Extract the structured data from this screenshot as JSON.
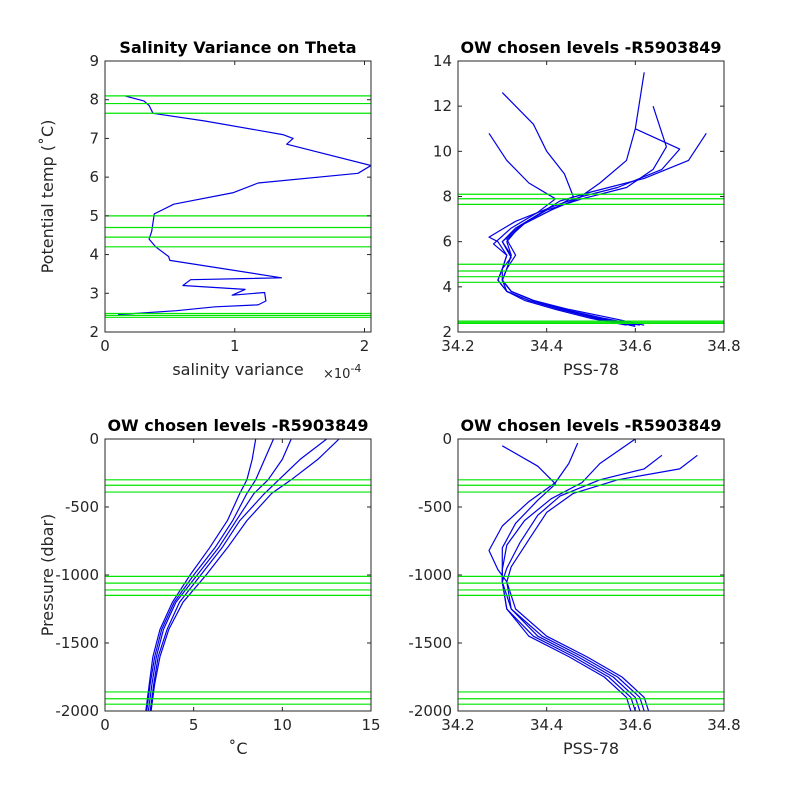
{
  "chart_data": [
    {
      "type": "line",
      "title": "Salinity Variance on Theta",
      "xlabel": "salinity variance",
      "x_exponent_label": "×10",
      "x_exponent": "-4",
      "ylabel": "Potential temp (˚C)",
      "xlim": [
        0,
        2.05
      ],
      "ylim": [
        2,
        9
      ],
      "xticks": [
        0,
        1,
        2
      ],
      "yticks": [
        2,
        3,
        4,
        5,
        6,
        7,
        8,
        9
      ],
      "series": [
        {
          "color": "#0000e6",
          "x": [
            0.15,
            0.3,
            0.34,
            0.37,
            0.77,
            1.37,
            1.45,
            1.4,
            2.05,
            1.95,
            1.18,
            0.99,
            0.53,
            0.38,
            0.36,
            0.34,
            0.39,
            0.49,
            0.5,
            1.36,
            0.66,
            0.6,
            1.08,
            0.98,
            1.23,
            1.24,
            1.18,
            0.85,
            0.55,
            0.1
          ],
          "y": [
            8.1,
            7.97,
            7.85,
            7.65,
            7.45,
            7.1,
            7.0,
            6.85,
            6.3,
            6.1,
            5.85,
            5.6,
            5.3,
            5.05,
            4.6,
            4.4,
            4.2,
            3.95,
            3.85,
            3.4,
            3.35,
            3.2,
            3.1,
            2.95,
            3.02,
            2.8,
            2.7,
            2.65,
            2.55,
            2.45
          ]
        }
      ],
      "hlines": [
        8.1,
        7.9,
        7.65,
        5.0,
        4.7,
        4.45,
        4.2,
        2.48,
        2.43,
        2.38
      ],
      "hline_color": "#00e600"
    },
    {
      "type": "line",
      "title": "OW chosen levels -R5903849",
      "xlabel": "PSS-78",
      "ylabel": "",
      "xlim": [
        34.2,
        34.8
      ],
      "ylim": [
        2,
        14
      ],
      "xticks": [
        34.2,
        34.4,
        34.6,
        34.8
      ],
      "yticks": [
        2,
        4,
        6,
        8,
        10,
        12,
        14
      ],
      "series": [
        {
          "color": "#0000e6",
          "x": [
            34.62,
            34.55,
            34.45,
            34.37,
            34.32,
            34.3,
            34.3,
            34.31,
            34.29,
            34.27,
            34.33,
            34.42,
            34.48,
            34.56,
            34.66,
            34.7,
            34.6
          ],
          "y": [
            2.3,
            2.6,
            3.0,
            3.4,
            3.8,
            4.3,
            4.8,
            5.4,
            6.0,
            6.2,
            6.9,
            7.6,
            8.0,
            8.4,
            9.2,
            10.1,
            11.0
          ]
        },
        {
          "color": "#0000e6",
          "x": [
            34.6,
            34.52,
            34.43,
            34.36,
            34.31,
            34.29,
            34.3,
            34.32,
            34.3,
            34.33,
            34.38,
            34.43,
            34.5,
            34.62,
            34.72,
            34.76
          ],
          "y": [
            2.25,
            2.6,
            3.0,
            3.4,
            3.8,
            4.3,
            4.8,
            5.3,
            6.0,
            6.6,
            7.2,
            7.8,
            8.2,
            8.8,
            9.6,
            10.8
          ]
        },
        {
          "color": "#0000e6",
          "x": [
            34.58,
            34.5,
            34.42,
            34.35,
            34.31,
            34.3,
            34.31,
            34.33,
            34.31,
            34.35,
            34.42,
            34.46,
            34.44,
            34.4,
            34.37,
            34.3
          ],
          "y": [
            2.3,
            2.6,
            3.0,
            3.4,
            3.8,
            4.3,
            4.8,
            5.4,
            6.1,
            6.8,
            7.5,
            8.0,
            9.0,
            10.0,
            11.2,
            12.6
          ]
        },
        {
          "color": "#0000e6",
          "x": [
            34.61,
            34.53,
            34.44,
            34.37,
            34.32,
            34.3,
            34.31,
            34.32,
            34.3,
            34.34,
            34.41,
            34.47,
            34.52,
            34.58,
            34.6,
            34.62
          ],
          "y": [
            2.3,
            2.6,
            3.0,
            3.4,
            3.8,
            4.3,
            4.8,
            5.4,
            6.0,
            6.7,
            7.4,
            7.9,
            8.6,
            9.6,
            11.0,
            13.5
          ]
        },
        {
          "color": "#0000e6",
          "x": [
            34.59,
            34.51,
            34.43,
            34.36,
            34.31,
            34.29,
            34.3,
            34.31,
            34.28,
            34.32,
            34.38,
            34.42,
            34.36,
            34.31,
            34.27
          ],
          "y": [
            2.3,
            2.6,
            3.0,
            3.4,
            3.8,
            4.3,
            4.8,
            5.4,
            5.9,
            6.6,
            7.3,
            7.9,
            8.6,
            9.6,
            10.8
          ]
        },
        {
          "color": "#0000e6",
          "x": [
            34.6,
            34.52,
            34.44,
            34.37,
            34.32,
            34.3,
            34.31,
            34.32,
            34.31,
            34.34,
            34.4,
            34.48,
            34.58,
            34.64,
            34.67,
            34.64
          ],
          "y": [
            2.3,
            2.6,
            3.0,
            3.4,
            3.8,
            4.3,
            4.8,
            5.4,
            6.0,
            6.7,
            7.4,
            7.9,
            8.4,
            9.2,
            10.2,
            12.0
          ]
        }
      ],
      "hlines": [
        8.1,
        7.9,
        7.65,
        5.0,
        4.7,
        4.45,
        4.2,
        2.48,
        2.43,
        2.38
      ],
      "hline_color": "#00e600"
    },
    {
      "type": "line",
      "title": "OW chosen levels -R5903849",
      "xlabel": "˚C",
      "ylabel": "Pressure (dbar)",
      "xlim": [
        0,
        15
      ],
      "ylim": [
        -2000,
        0
      ],
      "xticks": [
        0,
        5,
        10,
        15
      ],
      "yticks": [
        -2000,
        -1500,
        -1000,
        -500,
        0
      ],
      "series": [
        {
          "color": "#0000e6",
          "x": [
            9.5,
            9.0,
            8.5,
            8.0,
            7.2,
            6.2,
            5.0,
            3.9,
            3.2,
            2.8,
            2.55,
            2.4,
            2.35
          ],
          "y": [
            0,
            -150,
            -300,
            -400,
            -600,
            -800,
            -1000,
            -1200,
            -1400,
            -1600,
            -1800,
            -1950,
            -2000
          ]
        },
        {
          "color": "#0000e6",
          "x": [
            12.5,
            11.0,
            9.8,
            9.0,
            7.6,
            6.6,
            5.4,
            4.2,
            3.5,
            3.0,
            2.75,
            2.6,
            2.55
          ],
          "y": [
            0,
            -150,
            -300,
            -400,
            -600,
            -800,
            -1000,
            -1200,
            -1400,
            -1600,
            -1800,
            -1950,
            -2000
          ]
        },
        {
          "color": "#0000e6",
          "x": [
            8.5,
            8.3,
            8.0,
            7.6,
            6.9,
            5.9,
            4.8,
            3.8,
            3.1,
            2.7,
            2.5,
            2.35,
            2.3
          ],
          "y": [
            0,
            -150,
            -300,
            -400,
            -600,
            -800,
            -1000,
            -1200,
            -1400,
            -1600,
            -1800,
            -1950,
            -2000
          ]
        },
        {
          "color": "#0000e6",
          "x": [
            13.2,
            12.0,
            10.5,
            9.4,
            8.0,
            6.9,
            5.7,
            4.4,
            3.6,
            3.1,
            2.8,
            2.65,
            2.6
          ],
          "y": [
            0,
            -150,
            -300,
            -400,
            -600,
            -800,
            -1000,
            -1200,
            -1400,
            -1600,
            -1800,
            -1950,
            -2000
          ]
        },
        {
          "color": "#0000e6",
          "x": [
            10.5,
            10.0,
            9.2,
            8.4,
            7.4,
            6.4,
            5.2,
            4.0,
            3.3,
            2.9,
            2.65,
            2.5,
            2.45
          ],
          "y": [
            0,
            -150,
            -300,
            -400,
            -600,
            -800,
            -1000,
            -1200,
            -1400,
            -1600,
            -1800,
            -1950,
            -2000
          ]
        }
      ],
      "hlines": [
        -300,
        -340,
        -390,
        -1010,
        -1060,
        -1110,
        -1150,
        -1860,
        -1910,
        -1950
      ],
      "hline_color": "#00e600"
    },
    {
      "type": "line",
      "title": "OW chosen levels -R5903849",
      "xlabel": "PSS-78",
      "ylabel": "",
      "xlim": [
        34.2,
        34.8
      ],
      "ylim": [
        -2000,
        0
      ],
      "xticks": [
        34.2,
        34.4,
        34.6,
        34.8
      ],
      "yticks": [
        -2000,
        -1500,
        -1000,
        -500,
        0
      ],
      "series": [
        {
          "color": "#0000e6",
          "x": [
            34.66,
            34.62,
            34.52,
            34.43,
            34.38,
            34.34,
            34.31,
            34.3,
            34.32,
            34.39,
            34.48,
            34.56,
            34.61,
            34.62
          ],
          "y": [
            -120,
            -220,
            -300,
            -420,
            -560,
            -760,
            -950,
            -1050,
            -1250,
            -1450,
            -1600,
            -1750,
            -1900,
            -2000
          ]
        },
        {
          "color": "#0000e6",
          "x": [
            34.74,
            34.7,
            34.56,
            34.46,
            34.4,
            34.36,
            34.32,
            34.31,
            34.33,
            34.4,
            34.49,
            34.57,
            34.62,
            34.63
          ],
          "y": [
            -120,
            -220,
            -300,
            -400,
            -540,
            -740,
            -940,
            -1050,
            -1250,
            -1450,
            -1600,
            -1750,
            -1900,
            -2000
          ]
        },
        {
          "color": "#0000e6",
          "x": [
            34.3,
            34.38,
            34.42,
            34.38,
            34.33,
            34.3,
            34.3,
            34.3,
            34.31,
            34.37,
            34.46,
            34.54,
            34.59,
            34.6
          ],
          "y": [
            -50,
            -200,
            -330,
            -450,
            -620,
            -800,
            -960,
            -1050,
            -1250,
            -1450,
            -1600,
            -1750,
            -1900,
            -2000
          ]
        },
        {
          "color": "#0000e6",
          "x": [
            34.47,
            34.45,
            34.42,
            34.36,
            34.3,
            34.27,
            34.29,
            34.31,
            34.32,
            34.38,
            34.47,
            34.55,
            34.6,
            34.61
          ],
          "y": [
            -30,
            -180,
            -320,
            -460,
            -640,
            -820,
            -960,
            -1050,
            -1250,
            -1450,
            -1600,
            -1750,
            -1900,
            -2000
          ]
        },
        {
          "color": "#0000e6",
          "x": [
            34.6,
            34.52,
            34.48,
            34.41,
            34.35,
            34.31,
            34.3,
            34.3,
            34.31,
            34.36,
            34.45,
            34.53,
            34.58,
            34.59
          ],
          "y": [
            0,
            -180,
            -320,
            -440,
            -600,
            -780,
            -960,
            -1050,
            -1250,
            -1450,
            -1600,
            -1750,
            -1900,
            -2000
          ]
        }
      ],
      "hlines": [
        -300,
        -340,
        -390,
        -1010,
        -1060,
        -1110,
        -1150,
        -1860,
        -1910,
        -1950
      ],
      "hline_color": "#00e600"
    }
  ]
}
